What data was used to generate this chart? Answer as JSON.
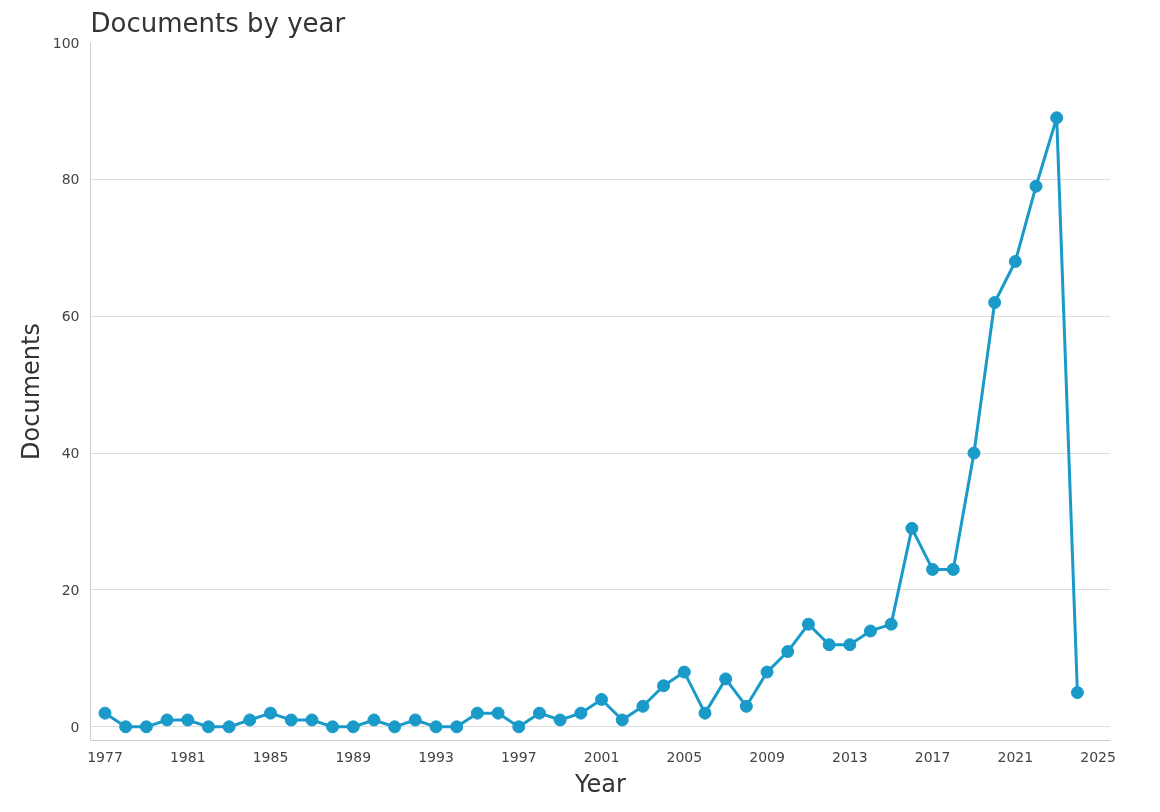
{
  "chart_data": {
    "type": "line",
    "title": "Documents by year",
    "xlabel": "Year",
    "ylabel": "Documents",
    "x": [
      1977,
      1978,
      1979,
      1980,
      1981,
      1982,
      1983,
      1984,
      1985,
      1986,
      1987,
      1988,
      1989,
      1990,
      1991,
      1992,
      1993,
      1994,
      1995,
      1996,
      1997,
      1998,
      1999,
      2000,
      2001,
      2002,
      2003,
      2004,
      2005,
      2006,
      2007,
      2008,
      2009,
      2010,
      2011,
      2012,
      2013,
      2014,
      2015,
      2016,
      2017,
      2018,
      2019,
      2020,
      2021,
      2022,
      2023,
      2024
    ],
    "series": [
      {
        "color": "#1a9ac9",
        "values": [
          2,
          0,
          0,
          1,
          1,
          0,
          0,
          1,
          2,
          1,
          1,
          0,
          0,
          1,
          0,
          1,
          0,
          0,
          2,
          2,
          0,
          2,
          1,
          2,
          4,
          1,
          3,
          6,
          8,
          2,
          7,
          3,
          8,
          11,
          15,
          12,
          12,
          14,
          15,
          29,
          23,
          23,
          40,
          62,
          68,
          79,
          89,
          5
        ]
      }
    ],
    "xlim": [
      1976.3,
      2025.6
    ],
    "xticks": [
      1977,
      1981,
      1985,
      1989,
      1993,
      1997,
      2001,
      2005,
      2009,
      2013,
      2017,
      2021,
      2025
    ],
    "ylim": [
      -2,
      100
    ],
    "yticks": [
      0,
      20,
      40,
      60,
      80,
      100
    ],
    "grid": "y",
    "marker": "circle",
    "line_style": "solid"
  }
}
